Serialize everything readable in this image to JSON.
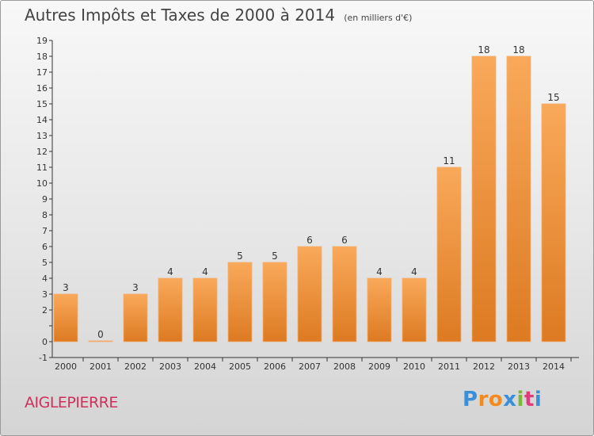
{
  "header": {
    "title": "Autres Impôts et Taxes de 2000 à 2014",
    "subtitle": "(en milliers d'€)"
  },
  "footer": {
    "commune": "AIGLEPIERRE",
    "logo_letters": [
      "P",
      "r",
      "o",
      "x",
      "i",
      "t",
      "i"
    ]
  },
  "colors": {
    "bar_light": "#f9a95a",
    "bar_dark": "#dd7a22",
    "commune": "#d0315c",
    "logo": [
      "#3b8fd9",
      "#f28a1e",
      "#f28a1e",
      "#3b8fd9",
      "#79b83b",
      "#e23b7c",
      "#3b8fd9"
    ]
  },
  "chart_data": {
    "type": "bar",
    "categories": [
      "2000",
      "2001",
      "2002",
      "2003",
      "2004",
      "2005",
      "2006",
      "2007",
      "2008",
      "2009",
      "2010",
      "2011",
      "2012",
      "2013",
      "2014"
    ],
    "values": [
      3,
      0,
      3,
      4,
      4,
      5,
      5,
      6,
      6,
      4,
      4,
      11,
      18,
      18,
      15
    ],
    "data_labels": [
      "3",
      "0",
      "3",
      "4",
      "4",
      "5",
      "5",
      "6",
      "6",
      "4",
      "4",
      "11",
      "18",
      "18",
      "15"
    ],
    "yticks": [
      "-1",
      "0",
      "",
      "2",
      "3",
      "4",
      "5",
      "6",
      "7",
      "8",
      "9",
      "10",
      "11",
      "12",
      "13",
      "14",
      "15",
      "16",
      "17",
      "18",
      "19"
    ],
    "ylim": [
      -1,
      19
    ],
    "grid": false,
    "title": "Autres Impôts et Taxes de 2000 à 2014",
    "xlabel": "",
    "ylabel": ""
  }
}
